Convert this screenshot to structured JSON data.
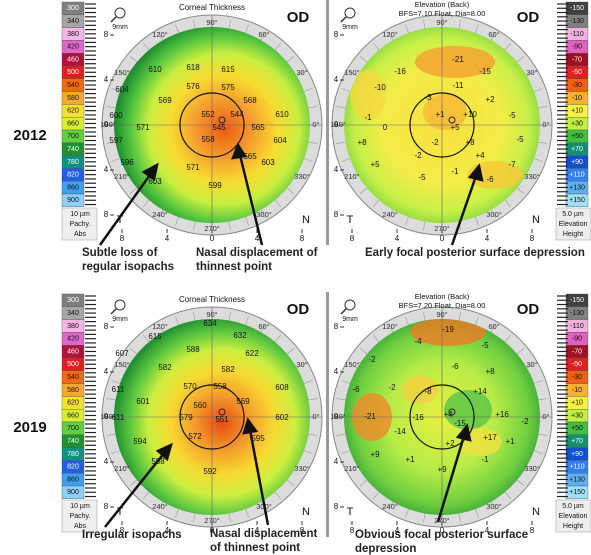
{
  "common": {
    "eye": "OD",
    "scan_size": "9mm",
    "temporal": "T",
    "nasal": "N",
    "angles": [
      "90°",
      "60°",
      "30°",
      "0°",
      "330°",
      "300°",
      "270°",
      "240°",
      "210°",
      "180°",
      "150°",
      "120°"
    ],
    "axis_ticks": [
      "8",
      "4",
      "0",
      "4",
      "8"
    ]
  },
  "pachy_scale": {
    "labels": [
      300,
      340,
      380,
      420,
      460,
      500,
      540,
      580,
      620,
      660,
      700,
      740,
      780,
      820,
      860,
      900
    ],
    "step": "10 µm",
    "name": "Pachy.",
    "mode": "Abs"
  },
  "elevation_scale": {
    "labels": [
      "-150",
      "-130",
      "-110",
      "-90",
      "-70",
      "-50",
      "-30",
      "-10",
      "+10",
      "+30",
      "+50",
      "+70",
      "+90",
      "+110",
      "+130",
      "+150"
    ],
    "step": "5.0 µm",
    "name": "Elevation",
    "mode": "Height"
  },
  "rows": [
    {
      "year": "2012",
      "pachymetry": {
        "title": "Corneal Thickness",
        "values": [
          610,
          618,
          615,
          604,
          576,
          575,
          569,
          568,
          600,
          552,
          544,
          610,
          571,
          545,
          565,
          597,
          558,
          604,
          596,
          565,
          571,
          603,
          603,
          599
        ]
      },
      "elevation": {
        "title": "Elevation (Back)",
        "subtitle": "BFS=7.10 Float, Dia=8.00",
        "values": [
          "-21",
          "-16",
          "-15",
          "-10",
          "-11",
          "-3",
          "+2",
          "-1",
          "+1",
          "+10",
          "-5",
          "0",
          "+5",
          "+8",
          "-2",
          "+8",
          "-5",
          "-2",
          "+4",
          "+5",
          "-5",
          "-1",
          "-6",
          "-7"
        ]
      },
      "annotations": [
        "Subtle loss of regular isopachs",
        "Nasal displacement of thinnest point",
        "Early focal posterior surface depression"
      ]
    },
    {
      "year": "2019",
      "pachymetry": {
        "title": "Corneal Thickness",
        "values": [
          634,
          615,
          632,
          607,
          588,
          622,
          582,
          582,
          611,
          570,
          558,
          608,
          601,
          560,
          569,
          611,
          579,
          551,
          602,
          594,
          572,
          595,
          588,
          592
        ]
      },
      "elevation": {
        "title": "Elevation (Back)",
        "subtitle": "BFS=7.20 Float, Dia=8.00",
        "values": [
          "-19",
          "-4",
          "-5",
          "-2",
          "-6",
          "+8",
          "-6",
          "-2",
          "-8",
          "+14",
          "-21",
          "+4",
          "+16",
          "-16",
          "-15",
          "-14",
          "+17",
          "+2",
          "+9",
          "+1",
          "+9",
          "-1",
          "+1",
          "-2"
        ]
      },
      "annotations": [
        "Irregular isopachs",
        "Nasal displacement of thinnest point",
        "Obvious focal posterior surface depression"
      ]
    }
  ]
}
